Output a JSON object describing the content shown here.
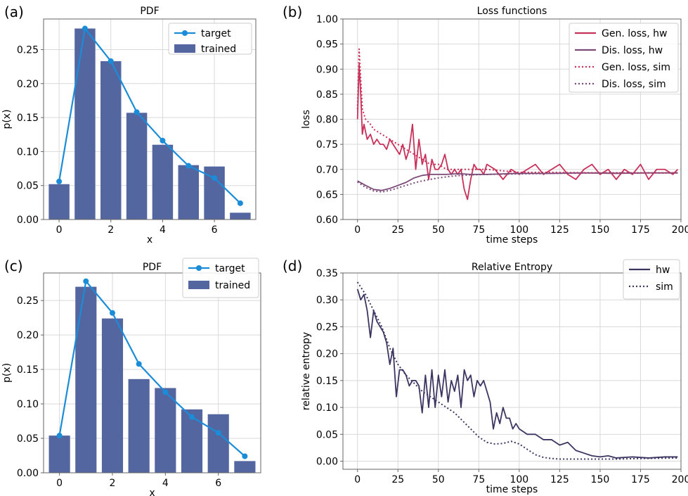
{
  "chart_data": [
    {
      "panel": "(a)",
      "type": "bar",
      "title": "PDF",
      "xlabel": "x",
      "ylabel": "p(x)",
      "xlim": [
        -0.6,
        7.6
      ],
      "ylim": [
        0,
        0.295
      ],
      "xticks": [
        "0",
        "2",
        "4",
        "6"
      ],
      "xtick_values": [
        0,
        2,
        4,
        6
      ],
      "yticks": [
        "0.00",
        "0.05",
        "0.10",
        "0.15",
        "0.20",
        "0.25"
      ],
      "ytick_values": [
        0,
        0.05,
        0.1,
        0.15,
        0.2,
        0.25
      ],
      "legend_position": "top-right",
      "series": [
        {
          "name": "trained",
          "kind": "bar",
          "color": "#5466a0",
          "x": [
            0,
            1,
            2,
            3,
            4,
            5,
            6,
            7
          ],
          "values": [
            0.052,
            0.281,
            0.233,
            0.157,
            0.11,
            0.08,
            0.078,
            0.01
          ]
        },
        {
          "name": "target",
          "kind": "line-marker",
          "color": "#1a8cd8",
          "x": [
            0,
            1,
            2,
            3,
            4,
            5,
            6,
            7
          ],
          "values": [
            0.056,
            0.281,
            0.233,
            0.158,
            0.116,
            0.079,
            0.061,
            0.024
          ]
        }
      ]
    },
    {
      "panel": "(b)",
      "type": "line",
      "title": "Loss functions",
      "xlabel": "time steps",
      "ylabel": "loss",
      "xlim": [
        -9,
        200
      ],
      "ylim": [
        0.6,
        1.0
      ],
      "xticks": [
        "0",
        "25",
        "50",
        "75",
        "100",
        "125",
        "150",
        "175",
        "200"
      ],
      "xtick_values": [
        0,
        25,
        50,
        75,
        100,
        125,
        150,
        175,
        200
      ],
      "yticks": [
        "0.60",
        "0.65",
        "0.70",
        "0.75",
        "0.80",
        "0.85",
        "0.90",
        "0.95",
        "1.00"
      ],
      "ytick_values": [
        0.6,
        0.65,
        0.7,
        0.75,
        0.8,
        0.85,
        0.9,
        0.95,
        1.0
      ],
      "legend_position": "top-right",
      "series": [
        {
          "name": "Gen. loss, hw",
          "style": "solid",
          "color": "#c9305a",
          "x": [
            0,
            1,
            2,
            3,
            4,
            6,
            8,
            10,
            12,
            14,
            16,
            18,
            20,
            22,
            24,
            26,
            28,
            30,
            32,
            34,
            36,
            38,
            40,
            42,
            44,
            46,
            48,
            50,
            52,
            54,
            56,
            58,
            60,
            62,
            64,
            66,
            68,
            70,
            72,
            74,
            76,
            78,
            80,
            85,
            90,
            95,
            100,
            105,
            110,
            115,
            120,
            125,
            130,
            135,
            140,
            145,
            150,
            155,
            160,
            165,
            170,
            175,
            180,
            185,
            190,
            195,
            198
          ],
          "values": [
            0.8,
            0.91,
            0.85,
            0.77,
            0.79,
            0.76,
            0.77,
            0.75,
            0.76,
            0.75,
            0.75,
            0.74,
            0.76,
            0.75,
            0.74,
            0.73,
            0.75,
            0.72,
            0.74,
            0.79,
            0.7,
            0.76,
            0.71,
            0.73,
            0.68,
            0.72,
            0.7,
            0.7,
            0.71,
            0.73,
            0.7,
            0.69,
            0.7,
            0.69,
            0.7,
            0.66,
            0.64,
            0.68,
            0.71,
            0.7,
            0.7,
            0.69,
            0.71,
            0.7,
            0.68,
            0.7,
            0.69,
            0.7,
            0.71,
            0.69,
            0.7,
            0.71,
            0.69,
            0.68,
            0.7,
            0.71,
            0.69,
            0.7,
            0.68,
            0.7,
            0.69,
            0.71,
            0.68,
            0.7,
            0.7,
            0.69,
            0.7
          ]
        },
        {
          "name": "Dis. loss, hw",
          "style": "solid",
          "color": "#7b4a78",
          "x": [
            0,
            5,
            10,
            15,
            20,
            25,
            30,
            35,
            40,
            45,
            50,
            55,
            60,
            65,
            70,
            75,
            80,
            90,
            100,
            120,
            140,
            160,
            180,
            198
          ],
          "values": [
            0.677,
            0.668,
            0.66,
            0.658,
            0.662,
            0.668,
            0.674,
            0.683,
            0.688,
            0.69,
            0.69,
            0.69,
            0.691,
            0.691,
            0.69,
            0.69,
            0.69,
            0.691,
            0.692,
            0.692,
            0.693,
            0.692,
            0.693,
            0.693
          ]
        },
        {
          "name": "Gen. loss, sim",
          "style": "dotted",
          "color": "#c9305a",
          "x": [
            0,
            1,
            2,
            3,
            5,
            8,
            10,
            15,
            20,
            25,
            30,
            35,
            40,
            45,
            50,
            55,
            60,
            70,
            80,
            100,
            120,
            150,
            175,
            198
          ],
          "values": [
            0.82,
            0.94,
            0.88,
            0.82,
            0.8,
            0.79,
            0.78,
            0.77,
            0.76,
            0.75,
            0.74,
            0.73,
            0.72,
            0.71,
            0.71,
            0.7,
            0.7,
            0.7,
            0.7,
            0.694,
            0.694,
            0.693,
            0.693,
            0.693
          ]
        },
        {
          "name": "Dis. loss, sim",
          "style": "dotted",
          "color": "#7b4a78",
          "x": [
            0,
            5,
            10,
            15,
            20,
            25,
            30,
            35,
            40,
            45,
            50,
            55,
            60,
            70,
            80,
            100,
            120,
            150,
            175,
            198
          ],
          "values": [
            0.675,
            0.664,
            0.657,
            0.655,
            0.658,
            0.663,
            0.668,
            0.673,
            0.677,
            0.68,
            0.683,
            0.685,
            0.687,
            0.689,
            0.69,
            0.691,
            0.692,
            0.693,
            0.693,
            0.693
          ]
        }
      ]
    },
    {
      "panel": "(c)",
      "type": "bar",
      "title": "PDF",
      "xlabel": "x",
      "ylabel": "p(x)",
      "xlim": [
        -0.6,
        7.6
      ],
      "ylim": [
        0,
        0.29
      ],
      "xticks": [
        "0",
        "2",
        "4",
        "6"
      ],
      "xtick_values": [
        0,
        2,
        4,
        6
      ],
      "yticks": [
        "0.00",
        "0.05",
        "0.10",
        "0.15",
        "0.20",
        "0.25"
      ],
      "ytick_values": [
        0,
        0.05,
        0.1,
        0.15,
        0.2,
        0.25
      ],
      "legend_position": "top-right",
      "series": [
        {
          "name": "trained",
          "kind": "bar",
          "color": "#5466a0",
          "x": [
            0,
            1,
            2,
            3,
            4,
            5,
            6,
            7
          ],
          "values": [
            0.054,
            0.27,
            0.224,
            0.136,
            0.123,
            0.092,
            0.085,
            0.017
          ]
        },
        {
          "name": "target",
          "kind": "line-marker",
          "color": "#1a8cd8",
          "x": [
            0,
            1,
            2,
            3,
            4,
            5,
            6,
            7
          ],
          "values": [
            0.054,
            0.278,
            0.232,
            0.158,
            0.117,
            0.081,
            0.058,
            0.024
          ]
        }
      ]
    },
    {
      "panel": "(d)",
      "type": "line",
      "title": "Relative Entropy",
      "xlabel": "time steps",
      "ylabel": "relative entropy",
      "xlim": [
        -9,
        200
      ],
      "ylim": [
        -0.015,
        0.35
      ],
      "xticks": [
        "0",
        "25",
        "50",
        "75",
        "100",
        "125",
        "150",
        "175",
        "200"
      ],
      "xtick_values": [
        0,
        25,
        50,
        75,
        100,
        125,
        150,
        175,
        200
      ],
      "yticks": [
        "0.00",
        "0.05",
        "0.10",
        "0.15",
        "0.20",
        "0.25",
        "0.30",
        "0.35"
      ],
      "ytick_values": [
        0,
        0.05,
        0.1,
        0.15,
        0.2,
        0.25,
        0.3,
        0.35
      ],
      "legend_position": "top-right",
      "series": [
        {
          "name": "hw",
          "style": "solid",
          "color": "#3d3561",
          "x": [
            0,
            2,
            4,
            6,
            8,
            10,
            12,
            14,
            16,
            18,
            20,
            22,
            24,
            26,
            28,
            30,
            32,
            34,
            36,
            38,
            40,
            42,
            44,
            46,
            48,
            50,
            52,
            54,
            56,
            58,
            60,
            62,
            64,
            66,
            68,
            70,
            72,
            74,
            76,
            78,
            80,
            82,
            84,
            86,
            88,
            90,
            92,
            94,
            96,
            98,
            100,
            105,
            110,
            115,
            120,
            125,
            130,
            135,
            140,
            145,
            150,
            155,
            160,
            170,
            180,
            190,
            198
          ],
          "values": [
            0.32,
            0.3,
            0.31,
            0.28,
            0.23,
            0.28,
            0.26,
            0.25,
            0.24,
            0.22,
            0.18,
            0.21,
            0.12,
            0.17,
            0.17,
            0.16,
            0.14,
            0.15,
            0.15,
            0.14,
            0.09,
            0.16,
            0.1,
            0.17,
            0.1,
            0.16,
            0.12,
            0.17,
            0.11,
            0.15,
            0.13,
            0.16,
            0.1,
            0.17,
            0.15,
            0.16,
            0.12,
            0.15,
            0.14,
            0.15,
            0.13,
            0.11,
            0.06,
            0.09,
            0.07,
            0.1,
            0.08,
            0.08,
            0.06,
            0.07,
            0.06,
            0.05,
            0.05,
            0.04,
            0.04,
            0.03,
            0.035,
            0.02,
            0.015,
            0.01,
            0.008,
            0.01,
            0.006,
            0.008,
            0.006,
            0.008,
            0.008
          ]
        },
        {
          "name": "sim",
          "style": "dotted",
          "color": "#3d3561",
          "x": [
            0,
            5,
            10,
            15,
            20,
            25,
            30,
            35,
            40,
            45,
            50,
            55,
            60,
            65,
            70,
            75,
            80,
            85,
            90,
            95,
            100,
            105,
            110,
            115,
            120,
            125,
            130,
            140,
            150,
            160,
            175,
            198
          ],
          "values": [
            0.333,
            0.31,
            0.28,
            0.25,
            0.21,
            0.18,
            0.16,
            0.145,
            0.13,
            0.12,
            0.11,
            0.1,
            0.09,
            0.075,
            0.06,
            0.045,
            0.035,
            0.032,
            0.033,
            0.037,
            0.032,
            0.022,
            0.012,
            0.007,
            0.005,
            0.004,
            0.004,
            0.004,
            0.004,
            0.004,
            0.005,
            0.006
          ]
        }
      ]
    }
  ]
}
